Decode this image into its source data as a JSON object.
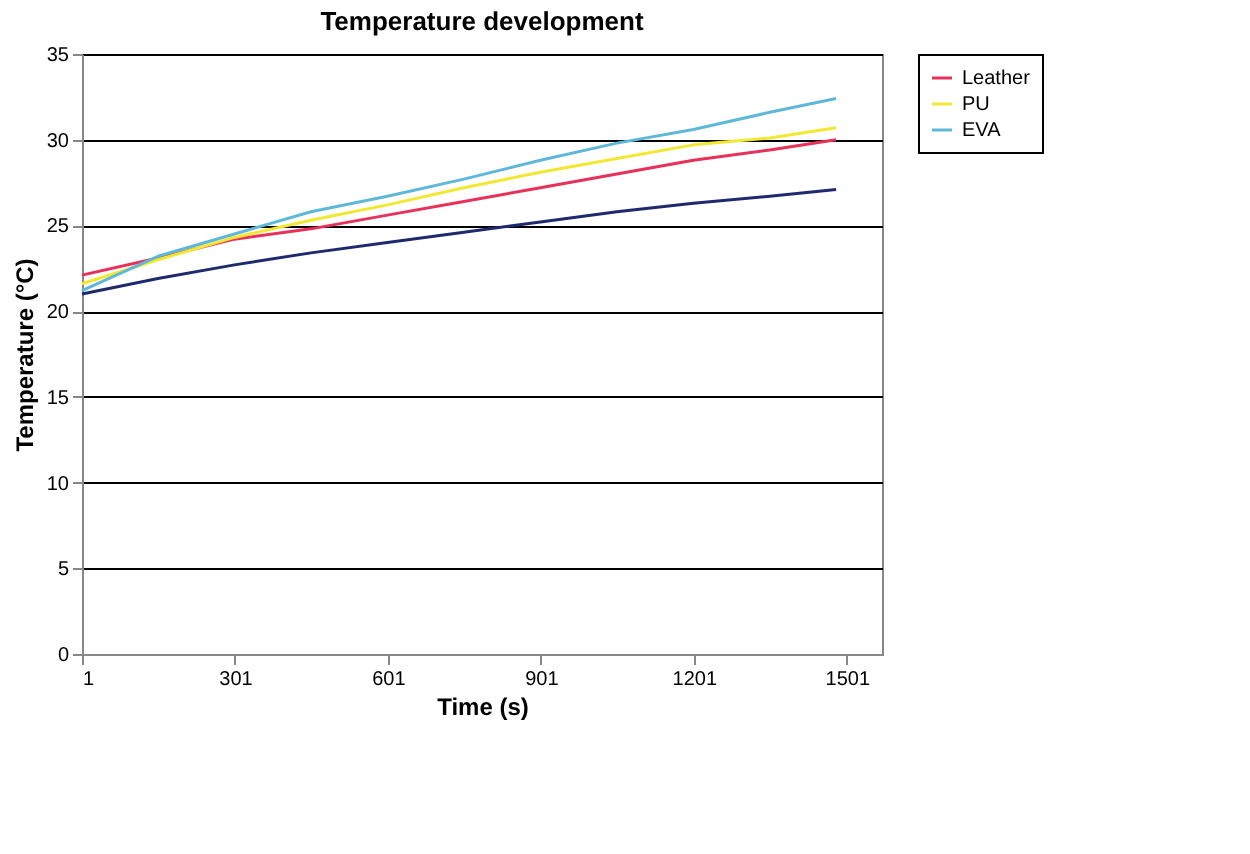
{
  "chart_data": {
    "type": "line",
    "title": "Temperature development",
    "xlabel": "Time (s)",
    "ylabel": "Temperature (°C)",
    "x": [
      1,
      150,
      300,
      450,
      600,
      750,
      900,
      1050,
      1200,
      1350,
      1480
    ],
    "xlim": [
      1,
      1570
    ],
    "xticks": [
      1,
      301,
      601,
      901,
      1201,
      1501
    ],
    "ylim": [
      0,
      35
    ],
    "yticks": [
      0,
      5,
      10,
      15,
      20,
      25,
      30,
      35
    ],
    "grid": "y",
    "legend": "right",
    "marker": "none",
    "line_style": "solid",
    "series": [
      {
        "color": "#1f2a6e",
        "values": [
          21.0,
          21.9,
          22.7,
          23.4,
          24.0,
          24.6,
          25.2,
          25.8,
          26.3,
          26.7,
          27.1
        ]
      },
      {
        "name": "Leather",
        "color": "#e8305a",
        "values": [
          22.1,
          23.1,
          24.2,
          24.8,
          25.6,
          26.4,
          27.2,
          28.0,
          28.8,
          29.4,
          30.0
        ]
      },
      {
        "name": "PU",
        "color": "#f2e830",
        "values": [
          21.6,
          23.0,
          24.3,
          25.3,
          26.2,
          27.2,
          28.1,
          28.9,
          29.7,
          30.1,
          30.7
        ]
      },
      {
        "name": "EVA",
        "color": "#5fb8d8",
        "values": [
          21.2,
          23.2,
          24.5,
          25.8,
          26.7,
          27.7,
          28.8,
          29.8,
          30.6,
          31.6,
          32.4
        ]
      }
    ]
  }
}
